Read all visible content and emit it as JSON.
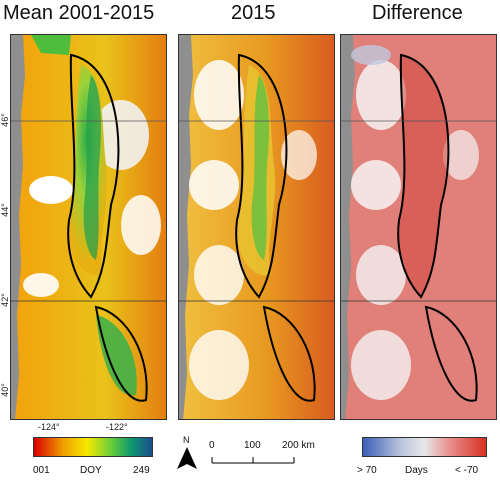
{
  "panels": [
    {
      "title": "Mean 2001-2015"
    },
    {
      "title": "2015"
    },
    {
      "title": "Difference"
    }
  ],
  "latitude_labels": [
    "46°",
    "44°",
    "42°",
    "40°"
  ],
  "longitude_labels": [
    "-124°",
    "-122°"
  ],
  "doy_legend": {
    "min": "001",
    "label": "DOY",
    "max": "249"
  },
  "diff_legend": {
    "min": "> 70",
    "label": "Days",
    "max": "< -70"
  },
  "scale_bar": {
    "tick0": "0",
    "tick1": "100",
    "tick2": "200 km"
  },
  "north_arrow": {
    "label": "N"
  },
  "colors": {
    "ocean": "#8f8f8f",
    "doy_ramp": [
      "#d80000",
      "#f0a000",
      "#f6e800",
      "#6ccf3a",
      "#0e9a6e",
      "#1a4b8c"
    ],
    "diff_ramp": [
      "#3a5fb6",
      "#b8c3dc",
      "#e8e8e8",
      "#e89090",
      "#d73020"
    ],
    "boundary": "#000000"
  }
}
